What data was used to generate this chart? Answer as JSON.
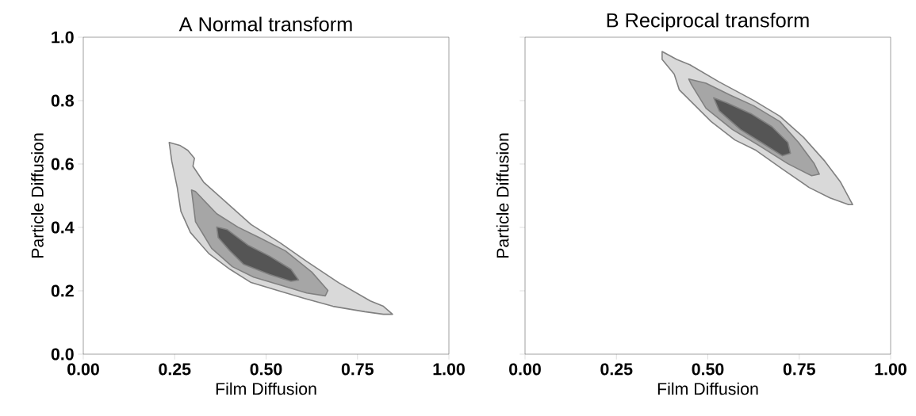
{
  "chart_data": [
    {
      "type": "area",
      "title": "A Normal transform",
      "xlabel": "Film Diffusion",
      "ylabel": "Particle Diffusion",
      "xlim": [
        0,
        1
      ],
      "ylim": [
        0,
        1
      ],
      "xticks": [
        {
          "value": 0,
          "label": "0.00"
        },
        {
          "value": 0.25,
          "label": "0.25"
        },
        {
          "value": 0.5,
          "label": "0.50"
        },
        {
          "value": 0.75,
          "label": "0.75"
        },
        {
          "value": 1,
          "label": "1.00"
        }
      ],
      "yticks": [
        {
          "value": 0,
          "label": "0.0"
        },
        {
          "value": 0.2,
          "label": "0.2"
        },
        {
          "value": 0.4,
          "label": "0.4"
        },
        {
          "value": 0.6,
          "label": "0.6"
        },
        {
          "value": 0.8,
          "label": "0.8"
        },
        {
          "value": 1,
          "label": "1.0"
        }
      ],
      "grid": false,
      "series": [
        {
          "color": "#d9d9d9",
          "x": [
            0.235,
            0.264,
            0.286,
            0.304,
            0.3,
            0.329,
            0.394,
            0.459,
            0.539,
            0.611,
            0.698,
            0.785,
            0.821,
            0.846,
            0.821,
            0.77,
            0.683,
            0.604,
            0.531,
            0.459,
            0.401,
            0.343,
            0.293,
            0.267,
            0.257,
            0.242
          ],
          "values": [
            0.668,
            0.659,
            0.643,
            0.618,
            0.593,
            0.543,
            0.476,
            0.409,
            0.351,
            0.293,
            0.226,
            0.168,
            0.151,
            0.126,
            0.126,
            0.134,
            0.151,
            0.176,
            0.201,
            0.226,
            0.268,
            0.318,
            0.384,
            0.451,
            0.526,
            0.609
          ]
        },
        {
          "color": "#a6a6a6",
          "x": [
            0.296,
            0.307,
            0.365,
            0.423,
            0.481,
            0.553,
            0.625,
            0.669,
            0.662,
            0.611,
            0.539,
            0.466,
            0.408,
            0.351,
            0.307
          ],
          "values": [
            0.518,
            0.513,
            0.443,
            0.401,
            0.368,
            0.326,
            0.259,
            0.201,
            0.184,
            0.193,
            0.218,
            0.243,
            0.276,
            0.334,
            0.418
          ]
        },
        {
          "color": "#555555",
          "x": [
            0.365,
            0.394,
            0.452,
            0.51,
            0.568,
            0.589,
            0.568,
            0.51,
            0.438,
            0.401,
            0.369
          ],
          "values": [
            0.401,
            0.393,
            0.343,
            0.309,
            0.268,
            0.234,
            0.23,
            0.251,
            0.284,
            0.326,
            0.368
          ]
        }
      ]
    },
    {
      "type": "area",
      "title": "B Reciprocal transform",
      "xlabel": "Film Diffusion",
      "ylabel": "Particle Diffusion",
      "xlim": [
        0,
        1
      ],
      "ylim": [
        0,
        1
      ],
      "xticks": [
        {
          "value": 0,
          "label": "0.00"
        },
        {
          "value": 0.25,
          "label": "0.25"
        },
        {
          "value": 0.5,
          "label": "0.50"
        },
        {
          "value": 0.75,
          "label": "0.75"
        },
        {
          "value": 1,
          "label": "1.00"
        }
      ],
      "yticks": [
        {
          "value": 0,
          "label": null
        },
        {
          "value": 0.2,
          "label": null
        },
        {
          "value": 0.4,
          "label": null
        },
        {
          "value": 0.6,
          "label": null
        },
        {
          "value": 0.8,
          "label": null
        },
        {
          "value": 1,
          "label": null
        }
      ],
      "tick_labels": "x",
      "grid": false,
      "series": [
        {
          "color": "#d9d9d9",
          "x": [
            0.375,
            0.415,
            0.451,
            0.531,
            0.625,
            0.697,
            0.762,
            0.82,
            0.863,
            0.896,
            0.885,
            0.834,
            0.777,
            0.704,
            0.632,
            0.574,
            0.509,
            0.422,
            0.408,
            0.375
          ],
          "values": [
            0.955,
            0.93,
            0.913,
            0.859,
            0.801,
            0.751,
            0.684,
            0.609,
            0.543,
            0.472,
            0.472,
            0.493,
            0.526,
            0.584,
            0.643,
            0.676,
            0.734,
            0.834,
            0.884,
            0.93
          ]
        },
        {
          "color": "#a6a6a6",
          "x": [
            0.448,
            0.495,
            0.56,
            0.625,
            0.697,
            0.748,
            0.791,
            0.805,
            0.784,
            0.719,
            0.639,
            0.567,
            0.495,
            0.455
          ],
          "values": [
            0.868,
            0.855,
            0.818,
            0.784,
            0.734,
            0.668,
            0.601,
            0.568,
            0.563,
            0.601,
            0.659,
            0.709,
            0.776,
            0.851
          ]
        },
        {
          "color": "#555555",
          "x": [
            0.516,
            0.552,
            0.618,
            0.675,
            0.719,
            0.726,
            0.704,
            0.646,
            0.589,
            0.531
          ],
          "values": [
            0.809,
            0.793,
            0.759,
            0.718,
            0.668,
            0.634,
            0.626,
            0.668,
            0.709,
            0.768
          ]
        }
      ]
    }
  ]
}
